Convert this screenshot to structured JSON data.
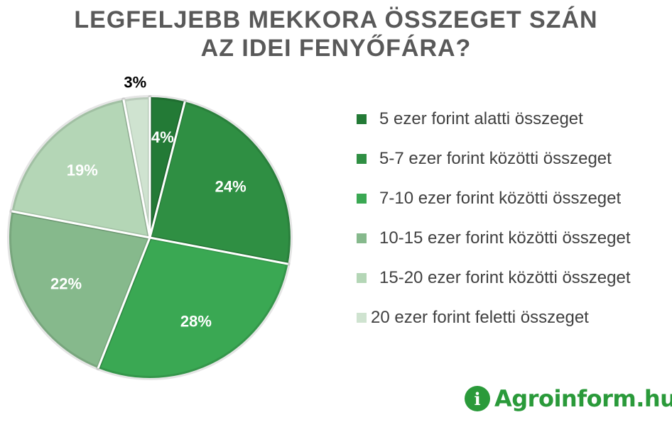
{
  "title": {
    "line1": "LEGFELJEBB MEKKORA ÖSSZEGET SZÁN",
    "line2": "AZ IDEI FENYŐFÁRA?"
  },
  "chart_data": {
    "type": "pie",
    "title": "LEGFELJEBB MEKKORA ÖSSZEGET SZÁN AZ IDEI FENYŐFÁRA?",
    "legend_position": "right",
    "slices": [
      {
        "label": "5 ezer forint alatti összeget",
        "value": 4,
        "display": "4%",
        "color": "#237a36"
      },
      {
        "label": "5-7 ezer forint közötti összeget",
        "value": 24,
        "display": "24%",
        "color": "#2f8f43"
      },
      {
        "label": "7-10 ezer forint közötti összeget",
        "value": 28,
        "display": "28%",
        "color": "#3aa853"
      },
      {
        "label": "10-15 ezer forint közötti összeget",
        "value": 22,
        "display": "22%",
        "color": "#86b98c"
      },
      {
        "label": "15-20 ezer forint közötti összeget",
        "value": 19,
        "display": "19%",
        "color": "#b4d6b6"
      },
      {
        "label": "20 ezer forint feletti összeget",
        "value": 3,
        "display": "3%",
        "color": "#cfe3d0"
      }
    ]
  },
  "logo": {
    "icon": "info-icon",
    "icon_glyph": "i",
    "text": "Agroinform.hu",
    "color": "#2a9a3a"
  }
}
